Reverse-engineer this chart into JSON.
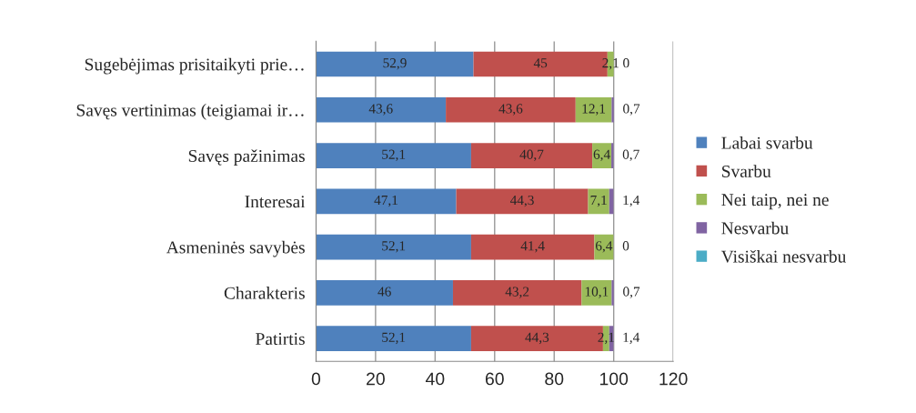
{
  "chart_data": {
    "type": "bar",
    "orientation": "horizontal",
    "stacked": true,
    "categories": [
      "Sugebėjimas prisitaikyti prie…",
      "Savęs vertinimas (teigiamai ir…",
      "Savęs pažinimas",
      "Interesai",
      "Asmeninės savybės",
      "Charakteris",
      "Patirtis"
    ],
    "series": [
      {
        "name": "Labai svarbu",
        "color": "#4f81bd",
        "values": [
          52.9,
          43.6,
          52.1,
          47.1,
          52.1,
          46,
          52.1
        ],
        "value_labels": [
          "52,9",
          "43,6",
          "52,1",
          "47,1",
          "52,1",
          "46",
          "52,1"
        ]
      },
      {
        "name": "Svarbu",
        "color": "#c0504d",
        "values": [
          45,
          43.6,
          40.7,
          44.3,
          41.4,
          43.2,
          44.3
        ],
        "value_labels": [
          "45",
          "43,6",
          "40,7",
          "44,3",
          "41,4",
          "43,2",
          "44,3"
        ]
      },
      {
        "name": "Nei taip, nei ne",
        "color": "#9bbb59",
        "values": [
          2.1,
          12.1,
          6.4,
          7.1,
          6.4,
          10.1,
          2.1
        ],
        "value_labels": [
          "2,1",
          "12,1",
          "6,4",
          "7,1",
          "6,4",
          "10,1",
          "2,1"
        ]
      },
      {
        "name": "Nesvarbu",
        "color": "#8064a2",
        "values": [
          0,
          0.7,
          0.7,
          1.4,
          0,
          0.7,
          1.4
        ],
        "value_labels": [
          "0",
          "0,7",
          "0,7",
          "1,4",
          "0",
          "0,7",
          "1,4"
        ]
      },
      {
        "name": "Visiškai nesvarbu",
        "color": "#4bacc6",
        "values": [
          0,
          0,
          0,
          0,
          0,
          0,
          0
        ]
      }
    ],
    "xlim": [
      0,
      120
    ],
    "xticks": [
      0,
      20,
      40,
      60,
      80,
      100,
      120
    ],
    "grid": "x",
    "legend": "right"
  }
}
